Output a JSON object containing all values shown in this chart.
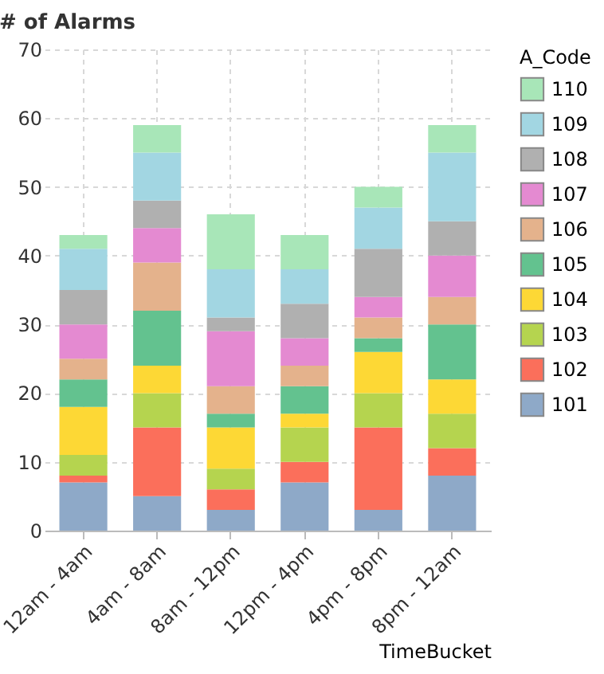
{
  "chart_data": {
    "type": "bar",
    "title": "# of Alarms",
    "xlabel": "TimeBucket",
    "legend_title": "A_Code",
    "stacked": true,
    "categories": [
      "12am - 4am",
      "4am - 8am",
      "8am - 12pm",
      "12pm - 4pm",
      "4pm - 8pm",
      "8pm - 12am"
    ],
    "series": [
      {
        "name": "101",
        "color": "#8ea9c8",
        "values": [
          7,
          5,
          3,
          7,
          3,
          8
        ]
      },
      {
        "name": "102",
        "color": "#fb6f5b",
        "values": [
          1,
          10,
          3,
          3,
          12,
          4
        ]
      },
      {
        "name": "103",
        "color": "#b5d44f",
        "values": [
          3,
          5,
          3,
          5,
          5,
          5
        ]
      },
      {
        "name": "104",
        "color": "#fdd835",
        "values": [
          7,
          4,
          6,
          2,
          6,
          5
        ]
      },
      {
        "name": "105",
        "color": "#63c28f",
        "values": [
          4,
          8,
          2,
          4,
          2,
          8
        ]
      },
      {
        "name": "106",
        "color": "#e4b28c",
        "values": [
          3,
          7,
          4,
          3,
          3,
          4
        ]
      },
      {
        "name": "107",
        "color": "#e48ad1",
        "values": [
          5,
          5,
          8,
          4,
          3,
          6
        ]
      },
      {
        "name": "108",
        "color": "#b0b0b0",
        "values": [
          5,
          4,
          2,
          5,
          7,
          5
        ]
      },
      {
        "name": "109",
        "color": "#a2d6e2",
        "values": [
          6,
          7,
          7,
          5,
          6,
          10
        ]
      },
      {
        "name": "110",
        "color": "#a8e6b8",
        "values": [
          2,
          4,
          8,
          5,
          3,
          4
        ]
      }
    ],
    "ylim": [
      0,
      70
    ],
    "yticks": [
      0,
      10,
      20,
      30,
      40,
      50,
      60,
      70
    ],
    "grid": true,
    "legend": "top right"
  }
}
